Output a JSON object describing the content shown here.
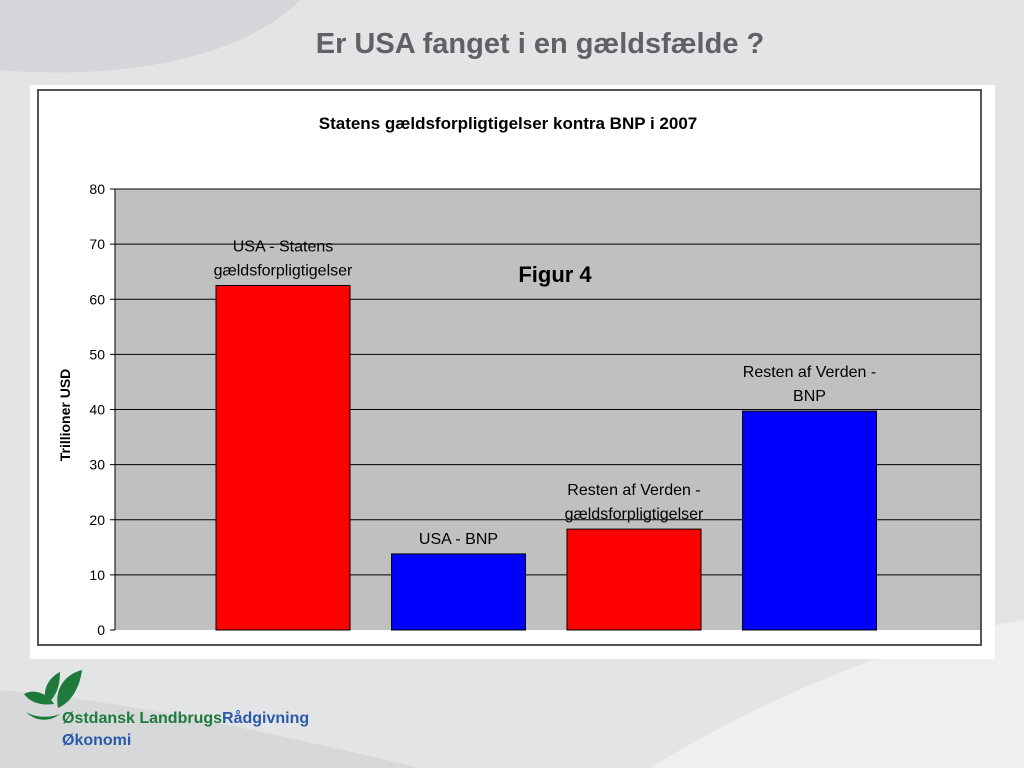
{
  "slide": {
    "title": "Er USA fanget i en gældsfælde ?"
  },
  "footer": {
    "company_part1": "Østdansk Landbrugs",
    "company_part2": "Rådgivning",
    "department": "Økonomi"
  },
  "colors": {
    "red_series": "#ff0000",
    "blue_series": "#0000ff",
    "plot_bg": "#c0c0c0",
    "brand_green": "#1d7a3a",
    "brand_blue": "#2b5aa8"
  },
  "chart_data": {
    "type": "bar",
    "title": "Statens gældsforpligtigelser kontra BNP i 2007",
    "annotation": "Figur 4",
    "ylabel": "Trillioner USD",
    "xlabel": "",
    "ylim": [
      0,
      80
    ],
    "yticks": [
      0,
      10,
      20,
      30,
      40,
      50,
      60,
      70,
      80
    ],
    "grid": true,
    "categories": [
      [
        "USA - Statens",
        "gældsforpligtigelser"
      ],
      [
        "USA - BNP"
      ],
      [
        "Resten af Verden -",
        "gældsforpligtigelser"
      ],
      [
        "Resten af Verden -",
        "BNP"
      ]
    ],
    "values": [
      62.5,
      13.8,
      18.3,
      39.7
    ],
    "bar_colors": [
      "#ff0000",
      "#0000ff",
      "#ff0000",
      "#0000ff"
    ]
  }
}
